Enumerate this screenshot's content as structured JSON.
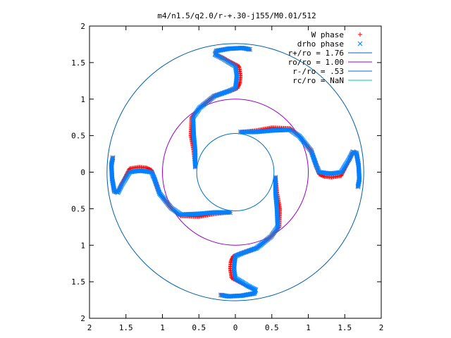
{
  "chart_data": {
    "type": "scatter",
    "title": "m4/n1.5/q2.0/r-+.30-j155/M0.01/512",
    "xlabel": "",
    "ylabel": "",
    "xlim": [
      -2,
      2
    ],
    "ylim": [
      -2,
      2
    ],
    "x_ticks": [
      {
        "value": -2,
        "label": "2"
      },
      {
        "value": -1.5,
        "label": "1.5"
      },
      {
        "value": -1,
        "label": "1"
      },
      {
        "value": -0.5,
        "label": "0.5"
      },
      {
        "value": 0,
        "label": "0"
      },
      {
        "value": 0.5,
        "label": "0.5"
      },
      {
        "value": 1,
        "label": "1"
      },
      {
        "value": 1.5,
        "label": "1.5"
      },
      {
        "value": 2,
        "label": "2"
      }
    ],
    "y_ticks": [
      {
        "value": 2,
        "label": "2"
      },
      {
        "value": 1.5,
        "label": "1.5"
      },
      {
        "value": 1,
        "label": "1"
      },
      {
        "value": 0.5,
        "label": "0.5"
      },
      {
        "value": 0,
        "label": "0"
      },
      {
        "value": -0.5,
        "label": "0.5"
      },
      {
        "value": -1,
        "label": "1"
      },
      {
        "value": -1.5,
        "label": "1.5"
      },
      {
        "value": -2,
        "label": "2"
      }
    ],
    "grid": false,
    "legend_position": "top-right",
    "series": [
      {
        "name": "W phase",
        "kind": "points",
        "marker": "+",
        "color": "#ff0000",
        "arms": 4,
        "arm_base_points": [
          [
            0.07,
            0.55
          ],
          [
            0.28,
            0.57
          ],
          [
            0.5,
            0.61
          ],
          [
            0.75,
            0.6
          ],
          [
            0.88,
            0.49
          ],
          [
            1.04,
            0.29
          ],
          [
            1.11,
            0.09
          ],
          [
            1.15,
            -0.03
          ],
          [
            1.22,
            -0.06
          ],
          [
            1.32,
            -0.07
          ],
          [
            1.45,
            -0.05
          ],
          [
            1.56,
            0.16
          ],
          [
            1.61,
            0.27
          ],
          [
            1.66,
            0.26
          ],
          [
            1.69,
            0.09
          ],
          [
            1.7,
            -0.1
          ],
          [
            1.68,
            -0.2
          ]
        ]
      },
      {
        "name": "drho phase",
        "kind": "points",
        "marker": "x",
        "color": "#0080ff",
        "arms": 4,
        "arm_base_points": [
          [
            0.07,
            0.55
          ],
          [
            0.28,
            0.55
          ],
          [
            0.5,
            0.57
          ],
          [
            0.75,
            0.58
          ],
          [
            0.88,
            0.49
          ],
          [
            1.04,
            0.29
          ],
          [
            1.11,
            0.09
          ],
          [
            1.15,
            0.0
          ],
          [
            1.22,
            -0.01
          ],
          [
            1.32,
            -0.02
          ],
          [
            1.45,
            0.0
          ],
          [
            1.56,
            0.18
          ],
          [
            1.61,
            0.28
          ],
          [
            1.66,
            0.26
          ],
          [
            1.69,
            0.09
          ],
          [
            1.7,
            -0.1
          ],
          [
            1.68,
            -0.2
          ]
        ]
      },
      {
        "name": "r+/ro = 1.76",
        "kind": "circle",
        "radius": 1.76,
        "color": "#0060ad"
      },
      {
        "name": "ro/ro = 1.00",
        "kind": "circle",
        "radius": 1.0,
        "color": "#9900cc"
      },
      {
        "name": "r-/ro = .53",
        "kind": "circle",
        "radius": 0.53,
        "color": "#0072bd"
      },
      {
        "name": "rc/ro = NaN",
        "kind": "circle",
        "radius": null,
        "color": "#00c0c0"
      }
    ]
  }
}
